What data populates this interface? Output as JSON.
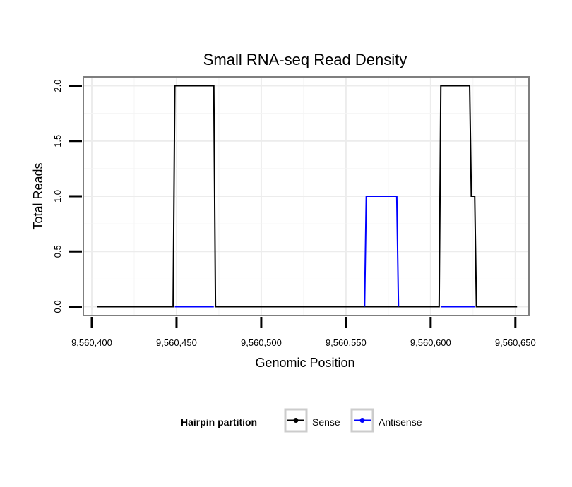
{
  "chart_data": {
    "type": "line",
    "title": "Small RNA-seq Read Density",
    "xlabel": "Genomic Position",
    "ylabel": "Total Reads",
    "xlim": [
      9560395,
      9560658
    ],
    "ylim": [
      -0.08,
      2.08
    ],
    "x_ticks": [
      9560400,
      9560450,
      9560500,
      9560550,
      9560600,
      9560650
    ],
    "x_tick_labels": [
      "9,560,400",
      "9,560,450",
      "9,560,500",
      "9,560,550",
      "9,560,600",
      "9,560,650"
    ],
    "y_ticks": [
      0.0,
      0.5,
      1.0,
      1.5,
      2.0
    ],
    "y_tick_labels": [
      "0.0",
      "0.5",
      "1.0",
      "1.5",
      "2.0"
    ],
    "grid": true,
    "legend": {
      "title": "Hairpin partition",
      "placement": "bottom",
      "entries": [
        "Sense",
        "Antisense"
      ]
    },
    "series": [
      {
        "name": "Sense",
        "color": "#000000",
        "x": [
          9560403,
          9560448,
          9560449,
          9560472,
          9560473,
          9560605,
          9560606,
          9560623,
          9560624,
          9560626,
          9560627,
          9560651
        ],
        "y": [
          0,
          0,
          2,
          2,
          0,
          0,
          2,
          2,
          1,
          1,
          0,
          0
        ]
      },
      {
        "name": "Antisense",
        "color": "#0000ff",
        "x": [
          9560449,
          9560472,
          9560561,
          9560562,
          9560580,
          9560581,
          9560606,
          9560626
        ],
        "y": [
          0,
          0,
          0,
          1,
          1,
          0,
          0,
          0
        ],
        "segments": [
          [
            0,
            1
          ],
          [
            2,
            3,
            4,
            5
          ],
          [
            6,
            7
          ]
        ]
      }
    ]
  }
}
